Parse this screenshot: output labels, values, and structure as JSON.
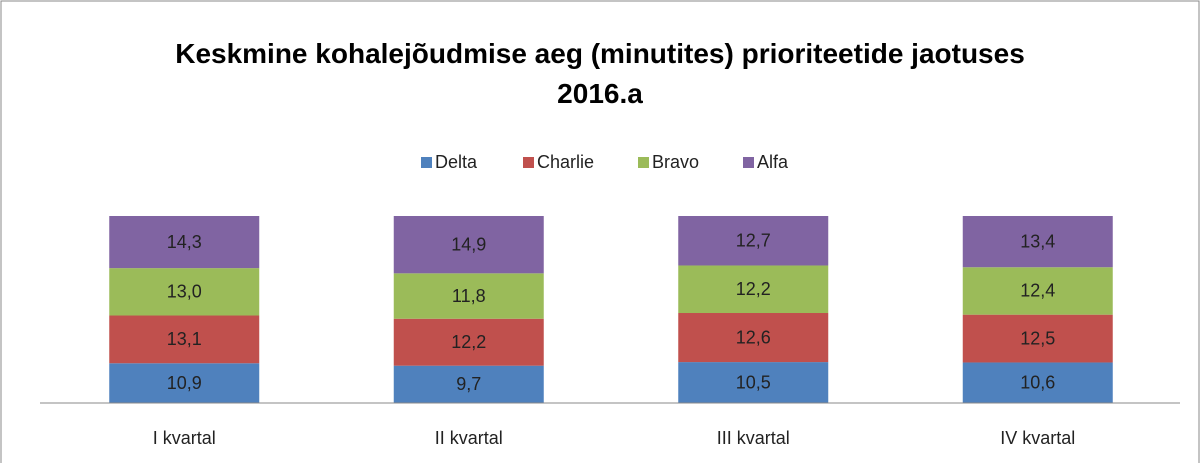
{
  "chart_data": {
    "type": "bar",
    "stacking": "percent",
    "title": "Keskmine kohalejõudmise aeg (minutites) prioriteetide jaotuses 2016.a",
    "categories": [
      "I kvartal",
      "II kvartal",
      "III kvartal",
      "IV kvartal"
    ],
    "legend": "top",
    "series": [
      {
        "name": "Delta",
        "color": "#4f81bd",
        "values": [
          10.9,
          9.7,
          10.5,
          10.6
        ],
        "value_labels": [
          "10,9",
          "9,7",
          "10,5",
          "10,6"
        ]
      },
      {
        "name": "Charlie",
        "color": "#c0504d",
        "values": [
          13.1,
          12.2,
          12.6,
          12.5
        ],
        "value_labels": [
          "13,1",
          "12,2",
          "12,6",
          "12,5"
        ]
      },
      {
        "name": "Bravo",
        "color": "#9bbb59",
        "values": [
          13.0,
          11.8,
          12.2,
          12.4
        ],
        "value_labels": [
          "13,0",
          "11,8",
          "12,2",
          "12,4"
        ]
      },
      {
        "name": "Alfa",
        "color": "#8064a2",
        "values": [
          14.3,
          14.9,
          12.7,
          13.4
        ],
        "value_labels": [
          "14,3",
          "14,9",
          "12,7",
          "13,4"
        ]
      }
    ]
  }
}
